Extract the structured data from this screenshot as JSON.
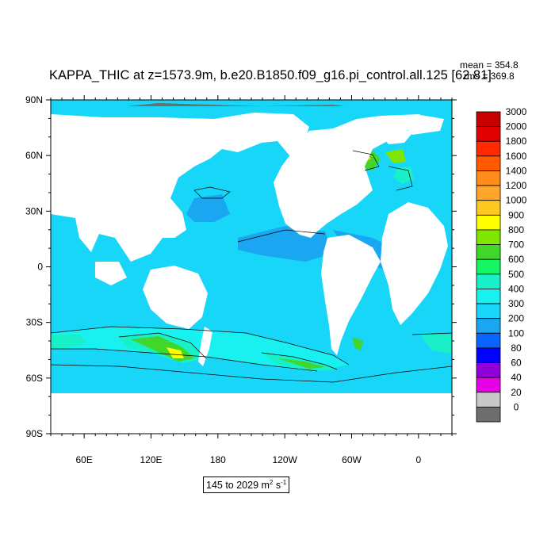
{
  "title": "KAPPA_THIC at z=1573.9m, b.e20.B1850.f09_g16.pi_control.all.125 [62.81]",
  "stats": {
    "mean_label": "mean = 354.8",
    "rms_label": "rms = 369.8"
  },
  "range": {
    "text": "145 to 2029 m",
    "unit_sup1": "2",
    "unit_mid": " s",
    "unit_sup2": "-1"
  },
  "map": {
    "lat_labels": [
      "90N",
      "60N",
      "30N",
      "0",
      "30S",
      "60S",
      "90S"
    ],
    "lat_values": [
      90,
      60,
      30,
      0,
      -30,
      -60,
      -90
    ],
    "lon_labels": [
      "60E",
      "120E",
      "180",
      "120W",
      "60W",
      "0"
    ],
    "lon_values": [
      60,
      120,
      180,
      240,
      300,
      360
    ],
    "lon_range": [
      30,
      390
    ],
    "ocean_base_color": "#18d6f8",
    "land_color": "#ffffff",
    "contour_color": "#000000"
  },
  "colorbar": {
    "levels": [
      "3000",
      "2000",
      "1800",
      "1600",
      "1400",
      "1200",
      "1000",
      "900",
      "800",
      "700",
      "600",
      "500",
      "400",
      "300",
      "200",
      "100",
      "80",
      "60",
      "40",
      "20",
      "0"
    ],
    "colors": [
      "#c70000",
      "#e30000",
      "#ff2a00",
      "#ff5a00",
      "#ff8c1a",
      "#ffa629",
      "#ffc821",
      "#ffff00",
      "#7fe600",
      "#41d72a",
      "#14f564",
      "#18f0c8",
      "#19f0f0",
      "#18d6f8",
      "#1aa6f0",
      "#0a64ff",
      "#0000ff",
      "#9000d8",
      "#e600e6",
      "#c8c8c8",
      "#6e6e6e"
    ]
  }
}
